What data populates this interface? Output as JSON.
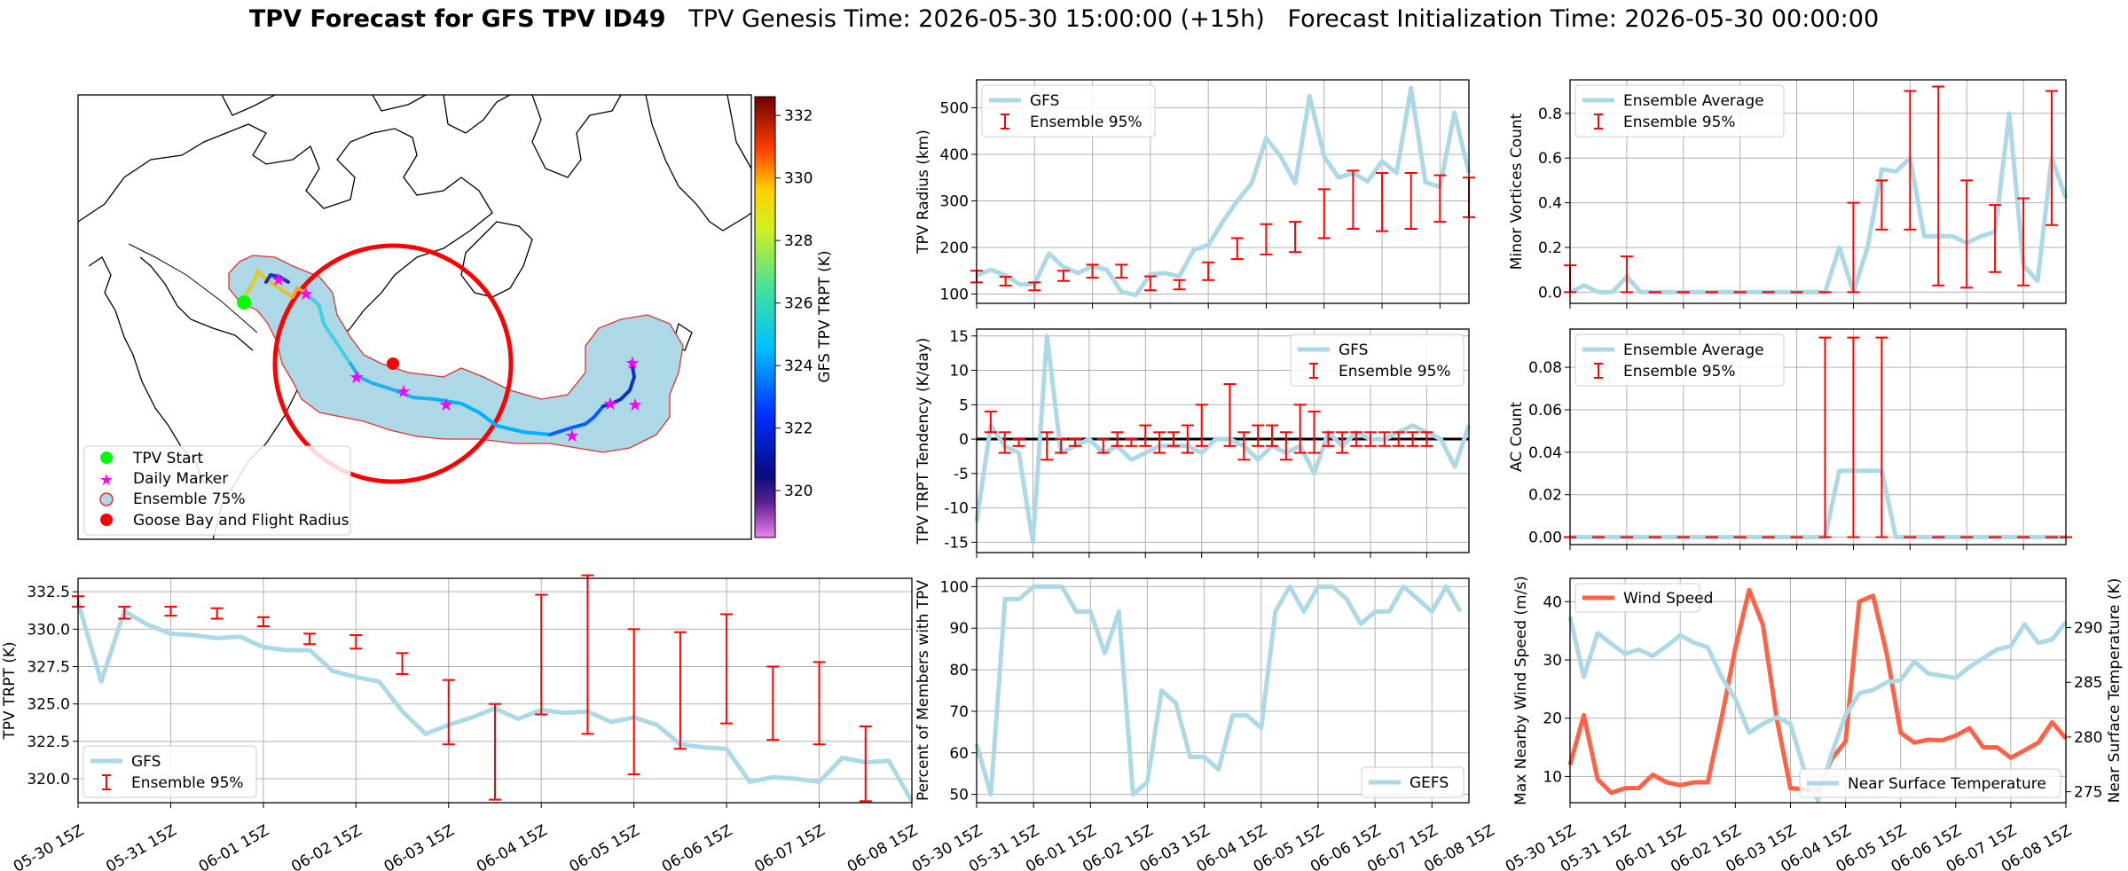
{
  "header": {
    "title_bold": "TPV Forecast for GFS TPV ID49",
    "title_rest": "TPV Genesis Time: 2026-05-30 15:00:00 (+15h)   Forecast Initialization Time: 2026-05-30 00:00:00"
  },
  "colors": {
    "gfs": "#add8e6",
    "ensemble": "#ff0000",
    "wind": "#ff6347",
    "temp_axis": "#4169e1",
    "map_fill": "#add8e6",
    "map_outline": "#e03030",
    "flight_radius": "#ff0000",
    "start_marker": "#00ff00",
    "daily_marker": "#ff00ff"
  },
  "time_ticks": [
    "05-30 15Z",
    "05-31 15Z",
    "06-01 15Z",
    "06-02 15Z",
    "06-03 15Z",
    "06-04 15Z",
    "06-05 15Z",
    "06-06 15Z",
    "06-07 15Z",
    "06-08 15Z"
  ],
  "map": {
    "legend": [
      "TPV Start",
      "Daily Marker",
      "Ensemble 75%",
      "Goose Bay and Flight Radius"
    ],
    "colorbar_label": "GFS TPV TRPT (K)",
    "colorbar_ticks": [
      "332",
      "330",
      "328",
      "326",
      "324",
      "322",
      "320"
    ],
    "colorbar_range": [
      318.5,
      332.6
    ]
  },
  "chart_data": [
    {
      "id": "radius",
      "type": "line",
      "ylabel": "TPV Radius (km)",
      "ylim": [
        80,
        560
      ],
      "yticks": [
        "100",
        "200",
        "300",
        "400",
        "500"
      ],
      "legend_location": "upper-left",
      "series": [
        {
          "name": "GFS",
          "values": [
            140,
            152,
            140,
            120,
            122,
            187,
            158,
            145,
            160,
            152,
            105,
            98,
            142,
            145,
            138,
            195,
            205,
            255,
            300,
            338,
            435,
            395,
            338,
            525,
            395,
            350,
            360,
            342,
            385,
            360,
            542,
            340,
            330,
            490,
            360
          ]
        },
        {
          "name": "Ensemble 95%",
          "type": "errorbar",
          "lows": [
            125,
            118,
            108,
            128,
            135,
            135,
            108,
            110,
            130,
            175,
            185,
            190,
            220,
            240,
            235,
            240,
            255,
            265,
            290
          ],
          "highs": [
            150,
            137,
            125,
            150,
            163,
            163,
            138,
            130,
            168,
            220,
            250,
            255,
            325,
            365,
            360,
            360,
            355,
            350,
            375
          ]
        }
      ]
    },
    {
      "id": "minor_vortices",
      "type": "line",
      "ylabel": "Minor Vortices Count",
      "ylim": [
        -0.05,
        0.95
      ],
      "yticks": [
        "0.0",
        "0.2",
        "0.4",
        "0.6",
        "0.8"
      ],
      "legend_location": "upper-left",
      "series": [
        {
          "name": "Ensemble Average",
          "values": [
            0,
            0.03,
            0,
            0,
            0.07,
            0,
            0,
            0,
            0,
            0,
            0,
            0,
            0,
            0,
            0,
            0,
            0,
            0,
            0,
            0.2,
            0,
            0.2,
            0.55,
            0.54,
            0.6,
            0.25,
            0.25,
            0.25,
            0.22,
            0.25,
            0.27,
            0.8,
            0.12,
            0.05,
            0.6,
            0.42
          ]
        },
        {
          "name": "Ensemble 95%",
          "type": "errorbar",
          "lows": [
            0,
            0,
            0,
            0,
            0,
            0,
            0,
            0,
            0,
            0,
            0.28,
            0.28,
            0.03,
            0.02,
            0.09,
            0.03,
            0.3
          ],
          "highs": [
            0.12,
            0.16,
            0,
            0,
            0,
            0,
            0,
            0,
            0,
            0.4,
            0.5,
            0.9,
            0.92,
            0.5,
            0.39,
            0.42,
            0.9
          ]
        }
      ]
    },
    {
      "id": "tendency",
      "type": "line",
      "ylabel": "TPV TRPT Tendency (K/day)",
      "ylim": [
        -16.5,
        16
      ],
      "yticks": [
        "15",
        "10",
        "5",
        "0",
        "-5",
        "-10",
        "-15"
      ],
      "legend_location": "upper-right",
      "series": [
        {
          "name": "GFS",
          "values": [
            -12,
            2,
            -1,
            -2,
            -15,
            15,
            -2,
            -1,
            0,
            -2,
            -1,
            -3,
            -2,
            -1,
            -1,
            -1,
            -2,
            0,
            0,
            -1,
            -3,
            -1,
            -2,
            -1,
            -5,
            1,
            -1,
            1,
            0,
            0,
            1,
            2,
            1,
            0,
            -4,
            2
          ]
        },
        {
          "name": "Ensemble 95%",
          "type": "errorbar",
          "lows": [
            1,
            -2,
            -1,
            -3,
            -2,
            -1,
            -2,
            -1,
            -1,
            -1,
            -2,
            -1,
            -2,
            -1,
            -1,
            -3,
            -1,
            -1,
            -3,
            -2,
            -2,
            -1,
            -2,
            -1,
            -1,
            -1,
            -1,
            -1,
            -1
          ],
          "highs": [
            4,
            1,
            0,
            1,
            0,
            0,
            0,
            1,
            0,
            2,
            1,
            1,
            2,
            5,
            8,
            1,
            2,
            2,
            1,
            5,
            4,
            1,
            1,
            1,
            1,
            1,
            1,
            1,
            1
          ]
        }
      ]
    },
    {
      "id": "ac_count",
      "type": "line",
      "ylabel": "AC Count",
      "ylim": [
        -0.0035,
        0.098
      ],
      "yticks": [
        "0.00",
        "0.02",
        "0.04",
        "0.06",
        "0.08"
      ],
      "legend_location": "upper-left",
      "series": [
        {
          "name": "Ensemble Average",
          "values": [
            0,
            0,
            0,
            0,
            0,
            0,
            0,
            0,
            0,
            0,
            0,
            0,
            0,
            0,
            0,
            0,
            0,
            0,
            0,
            0.0313,
            0.0313,
            0.0313,
            0.0313,
            0,
            0,
            0,
            0,
            0,
            0,
            0,
            0,
            0,
            0,
            0,
            0,
            0
          ]
        },
        {
          "name": "Ensemble 95%",
          "type": "errorbar",
          "lows": [
            0,
            0,
            0,
            0,
            0,
            0,
            0,
            0,
            0,
            0,
            0,
            0,
            0,
            0,
            0,
            0,
            0,
            0,
            0,
            0,
            0,
            0
          ],
          "highs": [
            0,
            0,
            0,
            0,
            0,
            0,
            0,
            0,
            0,
            0.094,
            0.094,
            0.094,
            0,
            0,
            0,
            0,
            0,
            0,
            0,
            0,
            0,
            0
          ]
        }
      ]
    },
    {
      "id": "trpt",
      "type": "line",
      "ylabel": "TPV TRPT (K)",
      "ylim": [
        318.4,
        333.4
      ],
      "yticks": [
        "332.5",
        "330.0",
        "327.5",
        "325.0",
        "322.5",
        "320.0"
      ],
      "legend_location": "lower-left",
      "series": [
        {
          "name": "GFS",
          "values": [
            331.8,
            326.5,
            331.2,
            330.3,
            329.7,
            329.6,
            329.4,
            329.5,
            328.8,
            328.6,
            328.6,
            327.2,
            326.8,
            326.5,
            324.5,
            323.0,
            323.6,
            324.1,
            324.7,
            324.0,
            324.6,
            324.4,
            324.5,
            323.8,
            324.1,
            323.6,
            322.3,
            322.1,
            322.0,
            319.8,
            320.1,
            320.0,
            319.8,
            321.4,
            321.1,
            321.2,
            318.5
          ]
        },
        {
          "name": "Ensemble 95%",
          "type": "errorbar",
          "lows": [
            331.5,
            330.7,
            330.9,
            330.7,
            330.2,
            329.0,
            328.7,
            327.0,
            322.3,
            318.6,
            324.3,
            323.0,
            320.3,
            322.0,
            323.7,
            322.6,
            322.3,
            318.5
          ],
          "highs": [
            332.2,
            331.5,
            331.5,
            331.4,
            330.8,
            329.7,
            329.6,
            328.4,
            326.6,
            325.0,
            332.3,
            333.6,
            330.0,
            329.8,
            331.0,
            327.5,
            327.8,
            323.5
          ]
        }
      ]
    },
    {
      "id": "percent_members",
      "type": "line",
      "ylabel": "Percent of Members with TPV",
      "ylim": [
        48,
        102
      ],
      "yticks": [
        "100",
        "90",
        "80",
        "70",
        "60",
        "50"
      ],
      "legend_location": "lower-right",
      "series": [
        {
          "name": "GEFS",
          "values": [
            62,
            50,
            97,
            97,
            100,
            100,
            100,
            94,
            94,
            84,
            94,
            50,
            53,
            75,
            72,
            59,
            59,
            56,
            69,
            69,
            66,
            94,
            100,
            94,
            100,
            100,
            97,
            91,
            94,
            94,
            100,
            97,
            94,
            100,
            94
          ]
        }
      ]
    },
    {
      "id": "wind_temp",
      "type": "line",
      "ylabel": "Max Nearby Wind Speed (m/s)",
      "ylabel_right": "Near Surface Temperature (K)",
      "ylim": [
        5.5,
        44
      ],
      "ylim_right": [
        274,
        294.5
      ],
      "yticks": [
        "40",
        "30",
        "20",
        "10"
      ],
      "yticks_right": [
        "290",
        "285",
        "280",
        "275"
      ],
      "legend_location": "upper-left",
      "series": [
        {
          "name": "Wind Speed",
          "axis": "left",
          "values": [
            12,
            20.5,
            9.5,
            7.2,
            8,
            8,
            10.3,
            9,
            8.5,
            9,
            9,
            20,
            32,
            42,
            36,
            20,
            8,
            7.8,
            7.5,
            13,
            16,
            40,
            41,
            31,
            17.5,
            15.8,
            16.3,
            16.2,
            17,
            18.3,
            15,
            15,
            13.2,
            14.5,
            15.8,
            19.3,
            16.5
          ]
        },
        {
          "name": "Near Surface Temperature",
          "axis": "right",
          "values": [
            291,
            285.5,
            289.5,
            288.5,
            287.6,
            288,
            287.4,
            288.3,
            289.3,
            288.6,
            288.2,
            285.5,
            283.5,
            280.4,
            281.2,
            281.8,
            281.2,
            277,
            274.2,
            278.5,
            282,
            284,
            284.3,
            285,
            285.2,
            286.9,
            285.8,
            285.6,
            285.4,
            286.4,
            287.2,
            288,
            288.3,
            290.3,
            288.6,
            288.9,
            290.5
          ]
        }
      ]
    }
  ]
}
